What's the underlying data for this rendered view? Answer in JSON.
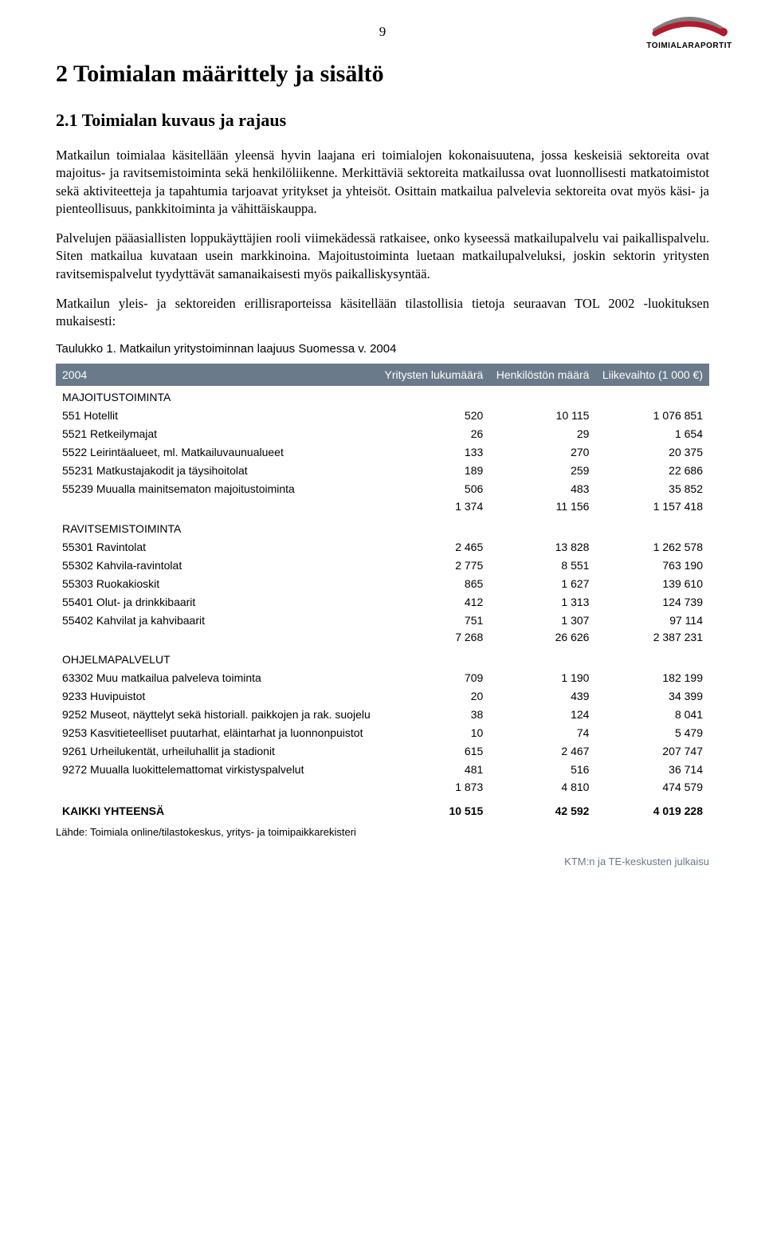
{
  "page_number": "9",
  "logo": {
    "arc_color_top": "#808080",
    "arc_color_bottom": "#b01c2e",
    "text": "TOIMIALARAPORTIT"
  },
  "section_title": "2   Toimialan määrittely ja sisältö",
  "subsection_title": "2.1   Toimialan kuvaus ja rajaus",
  "paragraphs": [
    "Matkailun toimialaa käsitellään yleensä hyvin laajana eri toimialojen kokonaisuutena, jossa keskeisiä sektoreita ovat majoitus- ja ravitsemistoiminta sekä henkilöliikenne. Merkittäviä sektoreita matkailussa ovat luonnollisesti matkatoimistot sekä aktiviteetteja ja tapahtumia tarjoavat yritykset ja yhteisöt. Osittain matkailua palvelevia sektoreita ovat myös käsi- ja pienteollisuus, pankkitoiminta ja vähittäiskauppa.",
    "Palvelujen pääasiallisten loppukäyttäjien rooli viimekädessä ratkaisee, onko kyseessä matkailupalvelu vai paikallispalvelu. Siten matkailua kuvataan usein markkinoina. Majoitustoiminta luetaan matkailupalveluksi, joskin sektorin yritysten ravitsemispalvelut tyydyttävät samanaikaisesti myös paikalliskysyntää.",
    "Matkailun yleis- ja sektoreiden erillisraporteissa käsitellään tilastollisia tietoja seuraavan TOL 2002 -luokituksen mukaisesti:"
  ],
  "table": {
    "caption": "Taulukko 1.   Matkailun yritystoiminnan laajuus Suomessa v. 2004",
    "header_bg": "#6a7a8a",
    "header_year": "2004",
    "col_headers": [
      "Yritysten lukumäärä",
      "Henkilöstön määrä",
      "Liikevaihto (1 000 €)"
    ],
    "sections": [
      {
        "title": "MAJOITUSTOIMINTA",
        "rows": [
          {
            "label": "551 Hotellit",
            "v": [
              "520",
              "10 115",
              "1 076 851"
            ]
          },
          {
            "label": "5521 Retkeilymajat",
            "v": [
              "26",
              "29",
              "1 654"
            ]
          },
          {
            "label": "5522 Leirintäalueet, ml. Matkailuvaunualueet",
            "v": [
              "133",
              "270",
              "20 375"
            ]
          },
          {
            "label": "55231 Matkustajakodit ja täysihoitolat",
            "v": [
              "189",
              "259",
              "22 686"
            ]
          },
          {
            "label": "55239 Muualla mainitsematon majoitustoiminta",
            "v": [
              "506",
              "483",
              "35 852"
            ]
          }
        ],
        "subtotal": [
          "1 374",
          "11 156",
          "1 157 418"
        ]
      },
      {
        "title": "RAVITSEMISTOIMINTA",
        "rows": [
          {
            "label": "55301 Ravintolat",
            "v": [
              "2 465",
              "13 828",
              "1 262 578"
            ]
          },
          {
            "label": "55302 Kahvila-ravintolat",
            "v": [
              "2 775",
              "8 551",
              "763 190"
            ]
          },
          {
            "label": "55303 Ruokakioskit",
            "v": [
              "865",
              "1 627",
              "139 610"
            ]
          },
          {
            "label": "55401 Olut- ja drinkkibaarit",
            "v": [
              "412",
              "1 313",
              "124 739"
            ]
          },
          {
            "label": "55402 Kahvilat ja kahvibaarit",
            "v": [
              "751",
              "1 307",
              "97 114"
            ]
          }
        ],
        "subtotal": [
          "7 268",
          "26 626",
          "2 387 231"
        ]
      },
      {
        "title": "OHJELMAPALVELUT",
        "rows": [
          {
            "label": "63302 Muu matkailua palveleva toiminta",
            "v": [
              "709",
              "1 190",
              "182 199"
            ]
          },
          {
            "label": "9233 Huvipuistot",
            "v": [
              "20",
              "439",
              "34 399"
            ]
          },
          {
            "label": "9252 Museot, näyttelyt sekä historiall. paikkojen ja rak. suojelu",
            "v": [
              "38",
              "124",
              "8 041"
            ]
          },
          {
            "label": "9253 Kasvitieteelliset puutarhat, eläintarhat ja luonnonpuistot",
            "v": [
              "10",
              "74",
              "5 479"
            ]
          },
          {
            "label": "9261 Urheilukentät, urheiluhallit ja stadionit",
            "v": [
              "615",
              "2 467",
              "207 747"
            ]
          },
          {
            "label": "9272 Muualla luokittelemattomat virkistyspalvelut",
            "v": [
              "481",
              "516",
              "36 714"
            ]
          }
        ],
        "subtotal": [
          "1 873",
          "4 810",
          "474 579"
        ]
      }
    ],
    "total": {
      "label": "KAIKKI YHTEENSÄ",
      "v": [
        "10 515",
        "42 592",
        "4 019 228"
      ]
    },
    "source": "Lähde: Toimiala online/tilastokeskus, yritys- ja toimipaikkarekisteri"
  },
  "footer": "KTM:n ja TE-keskusten julkaisu"
}
